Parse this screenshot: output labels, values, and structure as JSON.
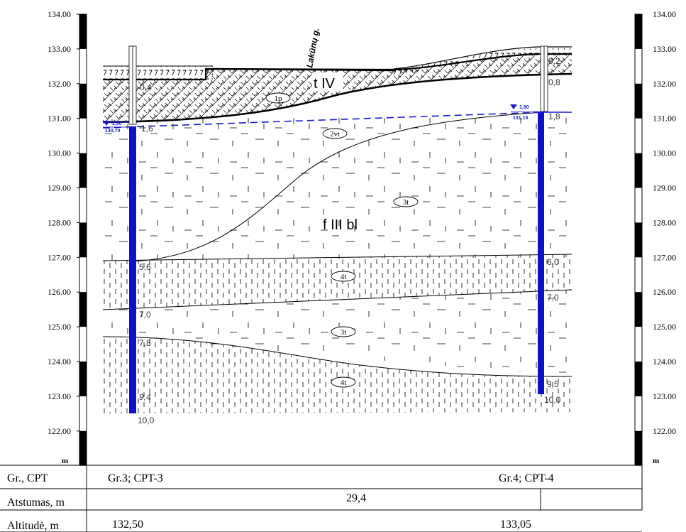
{
  "scale": {
    "ticks": [
      "134.00",
      "133.00",
      "132.00",
      "131.00",
      "130.00",
      "129.00",
      "128.00",
      "127.00",
      "126.00",
      "125.00",
      "124.00",
      "123.00",
      "122.00"
    ],
    "unit": "m"
  },
  "street": "Lakūnų g.",
  "layers": {
    "fill_age": "t IV",
    "glacial_age": "f III bl",
    "labels": [
      "1p",
      "2vt",
      "3t",
      "4t",
      "3t",
      "4t"
    ]
  },
  "boreholes": {
    "left": {
      "depths": [
        "0,4",
        "1,6",
        "5,6",
        "7,0",
        "7,8",
        "9,4",
        "10,0"
      ],
      "water_depth": "1,80",
      "water_level": "130,70"
    },
    "right": {
      "depths": [
        "0,2",
        "0,8",
        "1,8",
        "6,0",
        "7,0",
        "9,5",
        "10,0"
      ],
      "water_depth": "1,90",
      "water_level": "131,15"
    }
  },
  "table": {
    "rows": [
      {
        "label": "Gr., CPT",
        "left": "Gr.3; CPT-3",
        "center": "",
        "right": "Gr.4; CPT-4"
      },
      {
        "label": "Atstumas, m",
        "left": "",
        "center": "29,4",
        "right": ""
      },
      {
        "label": "Altitudė, m",
        "left": "132,50",
        "center": "",
        "right": "133,05"
      }
    ]
  },
  "colors": {
    "water": "#1a1acc",
    "borehole": "#1010c8",
    "line": "#000000"
  }
}
